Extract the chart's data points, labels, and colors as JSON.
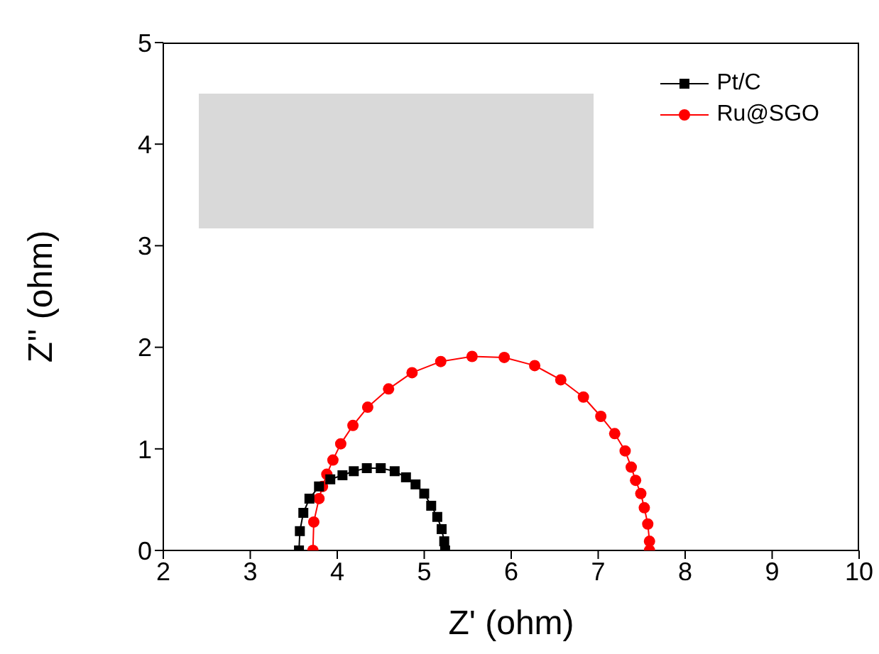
{
  "chart_data": {
    "type": "line",
    "xlabel": "Z' (ohm)",
    "ylabel": "Z'' (ohm)",
    "xlim": [
      2,
      10
    ],
    "xticks": [
      2,
      3,
      4,
      5,
      6,
      7,
      8,
      9,
      10
    ],
    "ylim": [
      0,
      5
    ],
    "yticks": [
      0,
      1,
      2,
      3,
      4,
      5
    ],
    "grid": false,
    "legend": "top right",
    "series": [
      {
        "name": "Pt/C",
        "color": "#000000",
        "marker": "square",
        "x": [
          3.56,
          3.57,
          3.61,
          3.68,
          3.79,
          3.92,
          4.06,
          4.19,
          4.34,
          4.5,
          4.66,
          4.79,
          4.9,
          5.0,
          5.08,
          5.15,
          5.2,
          5.23,
          5.24
        ],
        "values": [
          0,
          0.19,
          0.37,
          0.51,
          0.63,
          0.7,
          0.74,
          0.78,
          0.81,
          0.81,
          0.78,
          0.72,
          0.65,
          0.56,
          0.44,
          0.33,
          0.21,
          0.09,
          0
        ]
      },
      {
        "name": "Ru@SGO",
        "color": "#ff0000",
        "marker": "circle",
        "x": [
          3.72,
          3.73,
          3.79,
          3.83,
          3.88,
          3.95,
          4.04,
          4.18,
          4.35,
          4.59,
          4.86,
          5.19,
          5.55,
          5.92,
          6.27,
          6.57,
          6.83,
          7.03,
          7.19,
          7.31,
          7.38,
          7.43,
          7.49,
          7.53,
          7.57,
          7.59,
          7.59
        ],
        "values": [
          0,
          0.28,
          0.51,
          0.63,
          0.75,
          0.89,
          1.05,
          1.23,
          1.41,
          1.59,
          1.75,
          1.86,
          1.91,
          1.9,
          1.82,
          1.68,
          1.51,
          1.32,
          1.15,
          0.98,
          0.82,
          0.69,
          0.56,
          0.42,
          0.26,
          0.09,
          0
        ]
      }
    ]
  }
}
